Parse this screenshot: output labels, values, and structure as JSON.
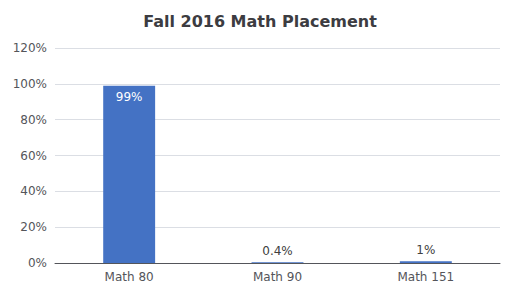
{
  "chart_data": {
    "type": "bar",
    "title": "Fall 2016 Math Placement",
    "categories": [
      "Math 80",
      "Math 90",
      "Math 151"
    ],
    "values": [
      99,
      0.4,
      1
    ],
    "value_labels": [
      "99%",
      "0.4%",
      "1%"
    ],
    "data_labels": true,
    "color": "#4472C4",
    "ylim": [
      0,
      120
    ],
    "yticks": [
      {
        "value": 0,
        "label": "0%"
      },
      {
        "value": 20,
        "label": "20%"
      },
      {
        "value": 40,
        "label": "40%"
      },
      {
        "value": 60,
        "label": "60%"
      },
      {
        "value": 80,
        "label": "80%"
      },
      {
        "value": 100,
        "label": "100%"
      },
      {
        "value": 120,
        "label": "120%"
      }
    ],
    "grid": true
  }
}
